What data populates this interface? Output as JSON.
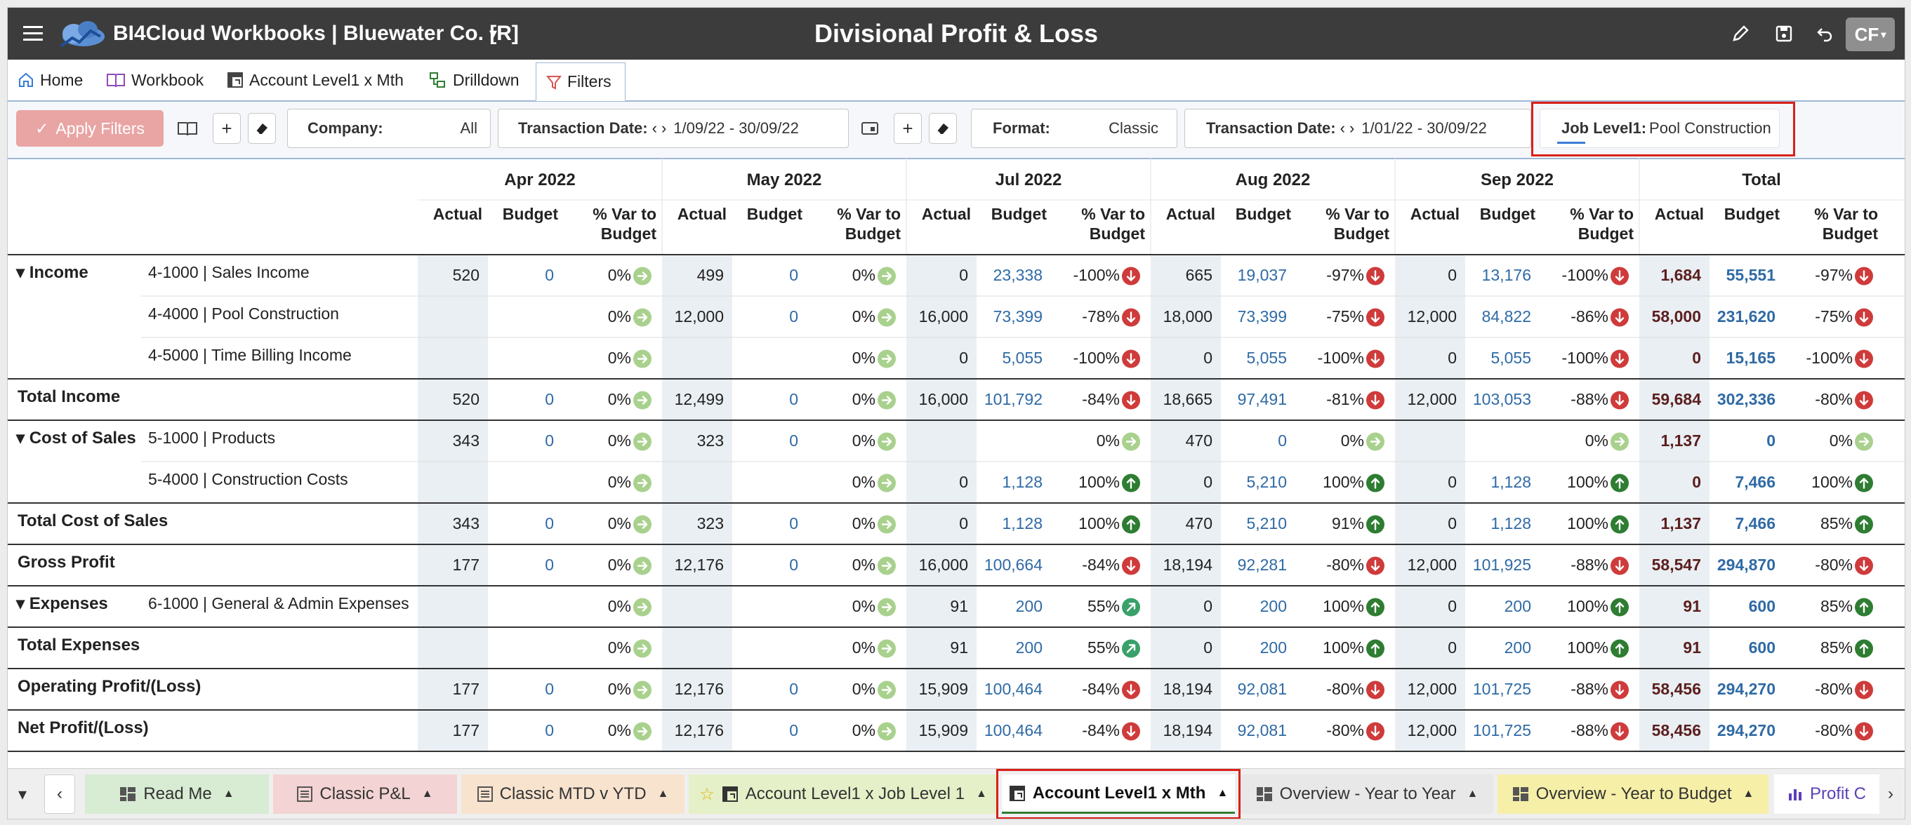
{
  "app": {
    "title": "BI4Cloud Workbooks | Bluewater Co. [R]",
    "page_title": "Divisional Profit & Loss",
    "avatar": "CF"
  },
  "nav_tabs": [
    {
      "label": "Home",
      "icon": "home-icon"
    },
    {
      "label": "Workbook",
      "icon": "book-icon"
    },
    {
      "label": "Account Level1 x Mth",
      "icon": "pivot-icon"
    },
    {
      "label": "Drilldown",
      "icon": "drilldown-icon"
    },
    {
      "label": "Filters",
      "icon": "filter-icon",
      "active": true
    }
  ],
  "filters": {
    "apply_label": "Apply Filters",
    "company_label": "Company:",
    "company_value": "All",
    "transaction_date_label": "Transaction Date:",
    "transaction_date_value": "1/09/22 - 30/09/22",
    "format_label": "Format:",
    "format_value": "Classic",
    "transaction_date2_label": "Transaction Date:",
    "transaction_date2_value": "1/01/22 - 30/09/22",
    "job_label": "Job Level1:",
    "job_value": "Pool Construction"
  },
  "table": {
    "months": [
      "Apr 2022",
      "May 2022",
      "Jul 2022",
      "Aug 2022",
      "Sep 2022",
      "Total"
    ],
    "subheaders": [
      "Actual",
      "Budget",
      "% Var to",
      "Budget"
    ],
    "rows": [
      {
        "label": "Income",
        "account": "4-1000 | Sales Income",
        "group": true,
        "cells": [
          [
            "520",
            "0",
            "0%",
            "g"
          ],
          [
            "499",
            "0",
            "0%",
            "g"
          ],
          [
            "0",
            "23,338",
            "-100%",
            "r"
          ],
          [
            "665",
            "19,037",
            "-97%",
            "r"
          ],
          [
            "0",
            "13,176",
            "-100%",
            "r"
          ],
          [
            "1,684",
            "55,551",
            "-97%",
            "r"
          ]
        ]
      },
      {
        "label": "",
        "account": "4-4000 | Pool Construction",
        "cells": [
          [
            "",
            "",
            "0%",
            "g"
          ],
          [
            "12,000",
            "0",
            "0%",
            "g"
          ],
          [
            "16,000",
            "73,399",
            "-78%",
            "r"
          ],
          [
            "18,000",
            "73,399",
            "-75%",
            "r"
          ],
          [
            "12,000",
            "84,822",
            "-86%",
            "r"
          ],
          [
            "58,000",
            "231,620",
            "-75%",
            "r"
          ]
        ]
      },
      {
        "label": "",
        "account": "4-5000 | Time Billing Income",
        "cells": [
          [
            "",
            "",
            "0%",
            "g"
          ],
          [
            "",
            "",
            "0%",
            "g"
          ],
          [
            "0",
            "5,055",
            "-100%",
            "r"
          ],
          [
            "0",
            "5,055",
            "-100%",
            "r"
          ],
          [
            "0",
            "5,055",
            "-100%",
            "r"
          ],
          [
            "0",
            "15,165",
            "-100%",
            "r"
          ]
        ]
      },
      {
        "label": "Total Income",
        "account": "",
        "total": true,
        "cells": [
          [
            "520",
            "0",
            "0%",
            "g"
          ],
          [
            "12,499",
            "0",
            "0%",
            "g"
          ],
          [
            "16,000",
            "101,792",
            "-84%",
            "r"
          ],
          [
            "18,665",
            "97,491",
            "-81%",
            "r"
          ],
          [
            "12,000",
            "103,053",
            "-88%",
            "r"
          ],
          [
            "59,684",
            "302,336",
            "-80%",
            "r"
          ]
        ]
      },
      {
        "label": "Cost of Sales",
        "account": "5-1000 | Products",
        "group": true,
        "cells": [
          [
            "343",
            "0",
            "0%",
            "g"
          ],
          [
            "323",
            "0",
            "0%",
            "g"
          ],
          [
            "",
            "",
            "0%",
            "g"
          ],
          [
            "470",
            "0",
            "0%",
            "g"
          ],
          [
            "",
            "",
            "0%",
            "g"
          ],
          [
            "1,137",
            "0",
            "0%",
            "g"
          ]
        ]
      },
      {
        "label": "",
        "account": "5-4000 | Construction Costs",
        "cells": [
          [
            "",
            "",
            "0%",
            "g"
          ],
          [
            "",
            "",
            "0%",
            "g"
          ],
          [
            "0",
            "1,128",
            "100%",
            "u"
          ],
          [
            "0",
            "5,210",
            "100%",
            "u"
          ],
          [
            "0",
            "1,128",
            "100%",
            "u"
          ],
          [
            "0",
            "7,466",
            "100%",
            "u"
          ]
        ]
      },
      {
        "label": "Total Cost of Sales",
        "account": "",
        "total": true,
        "cells": [
          [
            "343",
            "0",
            "0%",
            "g"
          ],
          [
            "323",
            "0",
            "0%",
            "g"
          ],
          [
            "0",
            "1,128",
            "100%",
            "u"
          ],
          [
            "470",
            "5,210",
            "91%",
            "u"
          ],
          [
            "0",
            "1,128",
            "100%",
            "u"
          ],
          [
            "1,137",
            "7,466",
            "85%",
            "u"
          ]
        ]
      },
      {
        "label": "Gross Profit",
        "account": "",
        "total": true,
        "cells": [
          [
            "177",
            "0",
            "0%",
            "g"
          ],
          [
            "12,176",
            "0",
            "0%",
            "g"
          ],
          [
            "16,000",
            "100,664",
            "-84%",
            "r"
          ],
          [
            "18,194",
            "92,281",
            "-80%",
            "r"
          ],
          [
            "12,000",
            "101,925",
            "-88%",
            "r"
          ],
          [
            "58,547",
            "294,870",
            "-80%",
            "r"
          ]
        ]
      },
      {
        "label": "Expenses",
        "account": "6-1000 | General & Admin Expenses",
        "group": true,
        "cells": [
          [
            "",
            "",
            "0%",
            "g"
          ],
          [
            "",
            "",
            "0%",
            "g"
          ],
          [
            "91",
            "200",
            "55%",
            "d"
          ],
          [
            "0",
            "200",
            "100%",
            "u"
          ],
          [
            "0",
            "200",
            "100%",
            "u"
          ],
          [
            "91",
            "600",
            "85%",
            "u"
          ]
        ]
      },
      {
        "label": "Total Expenses",
        "account": "",
        "total": true,
        "cells": [
          [
            "",
            "",
            "0%",
            "g"
          ],
          [
            "",
            "",
            "0%",
            "g"
          ],
          [
            "91",
            "200",
            "55%",
            "d"
          ],
          [
            "0",
            "200",
            "100%",
            "u"
          ],
          [
            "0",
            "200",
            "100%",
            "u"
          ],
          [
            "91",
            "600",
            "85%",
            "u"
          ]
        ]
      },
      {
        "label": "Operating Profit/(Loss)",
        "account": "",
        "total": true,
        "cells": [
          [
            "177",
            "0",
            "0%",
            "g"
          ],
          [
            "12,176",
            "0",
            "0%",
            "g"
          ],
          [
            "15,909",
            "100,464",
            "-84%",
            "r"
          ],
          [
            "18,194",
            "92,081",
            "-80%",
            "r"
          ],
          [
            "12,000",
            "101,725",
            "-88%",
            "r"
          ],
          [
            "58,456",
            "294,270",
            "-80%",
            "r"
          ]
        ]
      },
      {
        "label": "Net Profit/(Loss)",
        "account": "",
        "total": true,
        "cells": [
          [
            "177",
            "0",
            "0%",
            "g"
          ],
          [
            "12,176",
            "0",
            "0%",
            "g"
          ],
          [
            "15,909",
            "100,464",
            "-84%",
            "r"
          ],
          [
            "18,194",
            "92,081",
            "-80%",
            "r"
          ],
          [
            "12,000",
            "101,725",
            "-88%",
            "r"
          ],
          [
            "58,456",
            "294,270",
            "-80%",
            "r"
          ]
        ]
      }
    ]
  },
  "sheet_tabs": [
    {
      "label": "Read Me",
      "color": "#d7ecd3",
      "icon": "dashboard-icon"
    },
    {
      "label": "Classic P&L",
      "color": "#f3d3d3",
      "icon": "list-icon"
    },
    {
      "label": "Classic MTD v YTD",
      "color": "#f8e3cf",
      "icon": "list-icon"
    },
    {
      "label": "Account Level1 x Job Level 1",
      "color": "#e5f0c8",
      "icon": "pivot-icon",
      "star": true
    },
    {
      "label": "Account Level1 x Mth",
      "color": "#ffffff",
      "icon": "pivot-icon",
      "active": true
    },
    {
      "label": "Overview - Year to Year",
      "color": "#e8e8e8",
      "icon": "dashboard-icon"
    },
    {
      "label": "Overview - Year to Budget",
      "color": "#f6efa8",
      "icon": "dashboard-icon"
    },
    {
      "label": "Profit C",
      "color": "#ffffff",
      "icon": "chart-icon"
    }
  ],
  "colors": {
    "budget_blue": "#2f6aa5",
    "actual_dark": "#5c1e1e",
    "indicator_neutral": "#a9d18e",
    "indicator_bad": "#cf3b3b",
    "indicator_good": "#2e7d32",
    "indicator_mid": "#38a169",
    "highlight": "#d9201a"
  }
}
